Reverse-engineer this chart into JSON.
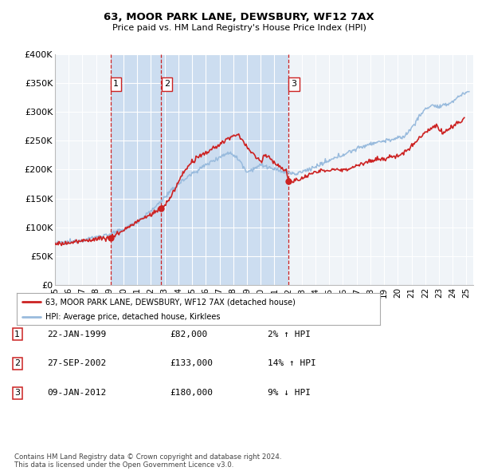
{
  "title": "63, MOOR PARK LANE, DEWSBURY, WF12 7AX",
  "subtitle": "Price paid vs. HM Land Registry's House Price Index (HPI)",
  "background_color": "#ffffff",
  "plot_background_color": "#f0f4f8",
  "grid_color": "#ffffff",
  "hpi_line_color": "#99bbdd",
  "price_line_color": "#cc2222",
  "sale_marker_color": "#cc2222",
  "vline_color": "#cc2222",
  "shade_color": "#ccddf0",
  "ylim": [
    0,
    400000
  ],
  "yticks": [
    0,
    50000,
    100000,
    150000,
    200000,
    250000,
    300000,
    350000,
    400000
  ],
  "ytick_labels": [
    "£0",
    "£50K",
    "£100K",
    "£150K",
    "£200K",
    "£250K",
    "£300K",
    "£350K",
    "£400K"
  ],
  "xlim_start": 1995.0,
  "xlim_end": 2025.5,
  "xtick_years": [
    1995,
    1996,
    1997,
    1998,
    1999,
    2000,
    2001,
    2002,
    2003,
    2004,
    2005,
    2006,
    2007,
    2008,
    2009,
    2010,
    2011,
    2012,
    2013,
    2014,
    2015,
    2016,
    2017,
    2018,
    2019,
    2020,
    2021,
    2022,
    2023,
    2024,
    2025
  ],
  "xtick_labels": [
    "95",
    "96",
    "97",
    "98",
    "99",
    "00",
    "01",
    "02",
    "03",
    "04",
    "05",
    "06",
    "07",
    "08",
    "09",
    "10",
    "11",
    "12",
    "13",
    "14",
    "15",
    "16",
    "17",
    "18",
    "19",
    "20",
    "21",
    "22",
    "23",
    "24",
    "25"
  ],
  "sales": [
    {
      "date_num": 1999.06,
      "price": 82000,
      "label": "1"
    },
    {
      "date_num": 2002.74,
      "price": 133000,
      "label": "2"
    },
    {
      "date_num": 2012.03,
      "price": 180000,
      "label": "3"
    }
  ],
  "legend_label_price": "63, MOOR PARK LANE, DEWSBURY, WF12 7AX (detached house)",
  "legend_label_hpi": "HPI: Average price, detached house, Kirklees",
  "table_rows": [
    {
      "num": "1",
      "date": "22-JAN-1999",
      "price": "£82,000",
      "change": "2% ↑ HPI"
    },
    {
      "num": "2",
      "date": "27-SEP-2002",
      "price": "£133,000",
      "change": "14% ↑ HPI"
    },
    {
      "num": "3",
      "date": "09-JAN-2012",
      "price": "£180,000",
      "change": "9% ↓ HPI"
    }
  ],
  "footer": "Contains HM Land Registry data © Crown copyright and database right 2024.\nThis data is licensed under the Open Government Licence v3.0."
}
